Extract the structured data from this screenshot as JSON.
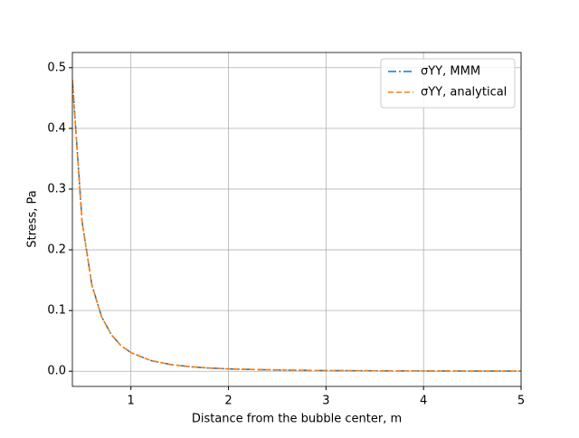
{
  "chart_data": {
    "type": "line",
    "xlabel": "Distance from the bubble center, m",
    "ylabel": "Stress, Pa",
    "x": [
      0.4,
      0.5,
      0.6,
      0.7,
      0.8,
      0.9,
      1.0,
      1.2,
      1.4,
      1.6,
      1.8,
      2.0,
      2.5,
      3.0,
      3.5,
      4.0,
      4.5,
      5.0
    ],
    "series": [
      {
        "name": "σYY, MMM",
        "color": "#1f77b4",
        "dash": "dashdot",
        "values": [
          0.48,
          0.246,
          0.142,
          0.0896,
          0.06,
          0.042,
          0.0307,
          0.0178,
          0.0112,
          0.0075,
          0.0053,
          0.0038,
          0.002,
          0.0011,
          0.0007,
          0.0005,
          0.0003,
          0.0002
        ]
      },
      {
        "name": "σYY, analytical",
        "color": "#ff7f0e",
        "dash": "dashed",
        "values": [
          0.48,
          0.246,
          0.142,
          0.0896,
          0.06,
          0.042,
          0.0307,
          0.0178,
          0.0112,
          0.0075,
          0.0053,
          0.0038,
          0.002,
          0.0011,
          0.0007,
          0.0005,
          0.0003,
          0.0002
        ]
      }
    ],
    "xlim": [
      0.4,
      5
    ],
    "xticks": [
      1,
      2,
      3,
      4,
      5
    ],
    "ylim": [
      -0.025,
      0.525
    ],
    "yticks": [
      {
        "value": 0,
        "label": "0.0"
      },
      0.1,
      0.2,
      0.3,
      0.4,
      0.5
    ],
    "grid": true,
    "legend": "upper right"
  }
}
